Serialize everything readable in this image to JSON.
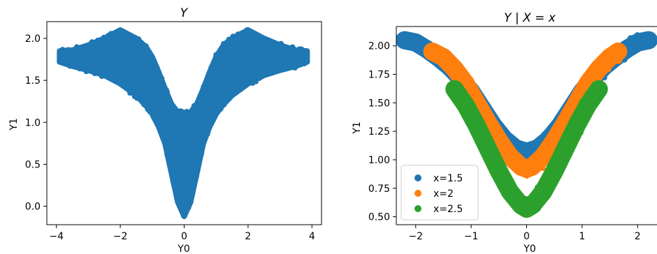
{
  "chart_data": [
    {
      "type": "scatter",
      "title": "Y",
      "xlabel": "Y0",
      "ylabel": "Y1",
      "xlim": [
        -4.3,
        4.3
      ],
      "ylim": [
        -0.22,
        2.2
      ],
      "xticks": [
        -4,
        -2,
        0,
        2,
        4
      ],
      "xtick_labels": [
        "−4",
        "−2",
        "0",
        "2",
        "4"
      ],
      "yticks": [
        0.0,
        0.5,
        1.0,
        1.5,
        2.0
      ],
      "ytick_labels": [
        "0.0",
        "0.5",
        "1.0",
        "1.5",
        "2.0"
      ],
      "grid": false,
      "series": [
        {
          "color": "#1f77b4",
          "band": {
            "x": [
              -3.9,
              -3.5,
              -3.0,
              -2.5,
              -2.0,
              -1.5,
              -1.2,
              -1.0,
              -0.8,
              -0.6,
              -0.4,
              -0.2,
              0.0,
              0.2,
              0.4,
              0.6,
              0.8,
              1.0,
              1.2,
              1.5,
              2.0,
              2.5,
              3.0,
              3.5,
              3.85
            ],
            "upper": [
              1.85,
              1.86,
              1.92,
              2.0,
              2.1,
              2.0,
              1.9,
              1.78,
              1.6,
              1.4,
              1.22,
              1.12,
              1.1,
              1.12,
              1.22,
              1.4,
              1.6,
              1.78,
              1.9,
              2.0,
              2.1,
              2.0,
              1.92,
              1.86,
              1.85
            ],
            "lower": [
              1.72,
              1.67,
              1.62,
              1.56,
              1.46,
              1.32,
              1.2,
              1.1,
              0.95,
              0.75,
              0.4,
              0.05,
              -0.12,
              0.05,
              0.4,
              0.75,
              0.95,
              1.1,
              1.2,
              1.32,
              1.46,
              1.56,
              1.62,
              1.67,
              1.72
            ]
          }
        }
      ]
    },
    {
      "type": "scatter",
      "title": "Y | X = x",
      "xlabel": "Y0",
      "ylabel": "Y1",
      "xlim": [
        -2.35,
        2.35
      ],
      "ylim": [
        0.43,
        2.17
      ],
      "xticks": [
        -2,
        -1,
        0,
        1,
        2
      ],
      "xtick_labels": [
        "−2",
        "−1",
        "0",
        "1",
        "2"
      ],
      "yticks": [
        0.5,
        0.75,
        1.0,
        1.25,
        1.5,
        1.75,
        2.0
      ],
      "ytick_labels": [
        "0.50",
        "0.75",
        "1.00",
        "1.25",
        "1.50",
        "1.75",
        "2.00"
      ],
      "grid": false,
      "legend": "lower-left",
      "series": [
        {
          "name": "x=1.5",
          "color": "#1f77b4",
          "curve": {
            "x": [
              -2.2,
              -2.0,
              -1.8,
              -1.6,
              -1.4,
              -1.2,
              -1.0,
              -0.8,
              -0.6,
              -0.4,
              -0.2,
              0.0,
              0.2,
              0.4,
              0.6,
              0.8,
              1.0,
              1.2,
              1.4,
              1.6,
              1.8,
              2.0,
              2.2
            ],
            "y": [
              2.05,
              2.03,
              1.97,
              1.9,
              1.82,
              1.72,
              1.6,
              1.45,
              1.3,
              1.18,
              1.1,
              1.07,
              1.1,
              1.18,
              1.3,
              1.45,
              1.6,
              1.72,
              1.82,
              1.9,
              1.97,
              2.03,
              2.05
            ]
          }
        },
        {
          "name": "x=2",
          "color": "#ff7f0e",
          "curve": {
            "x": [
              -1.7,
              -1.5,
              -1.3,
              -1.1,
              -0.9,
              -0.7,
              -0.5,
              -0.3,
              -0.1,
              0.0,
              0.1,
              0.3,
              0.5,
              0.7,
              0.9,
              1.1,
              1.3,
              1.5,
              1.65
            ],
            "y": [
              1.95,
              1.9,
              1.8,
              1.67,
              1.5,
              1.33,
              1.17,
              1.03,
              0.94,
              0.92,
              0.94,
              1.03,
              1.17,
              1.33,
              1.5,
              1.67,
              1.8,
              1.9,
              1.95
            ]
          }
        },
        {
          "name": "x=2.5",
          "color": "#2ca02c",
          "curve": {
            "x": [
              -1.3,
              -1.1,
              -0.9,
              -0.7,
              -0.5,
              -0.3,
              -0.1,
              0.0,
              0.1,
              0.3,
              0.5,
              0.7,
              0.9,
              1.1,
              1.3
            ],
            "y": [
              1.62,
              1.48,
              1.3,
              1.1,
              0.9,
              0.72,
              0.6,
              0.57,
              0.6,
              0.72,
              0.9,
              1.1,
              1.3,
              1.48,
              1.62
            ]
          }
        }
      ]
    }
  ]
}
